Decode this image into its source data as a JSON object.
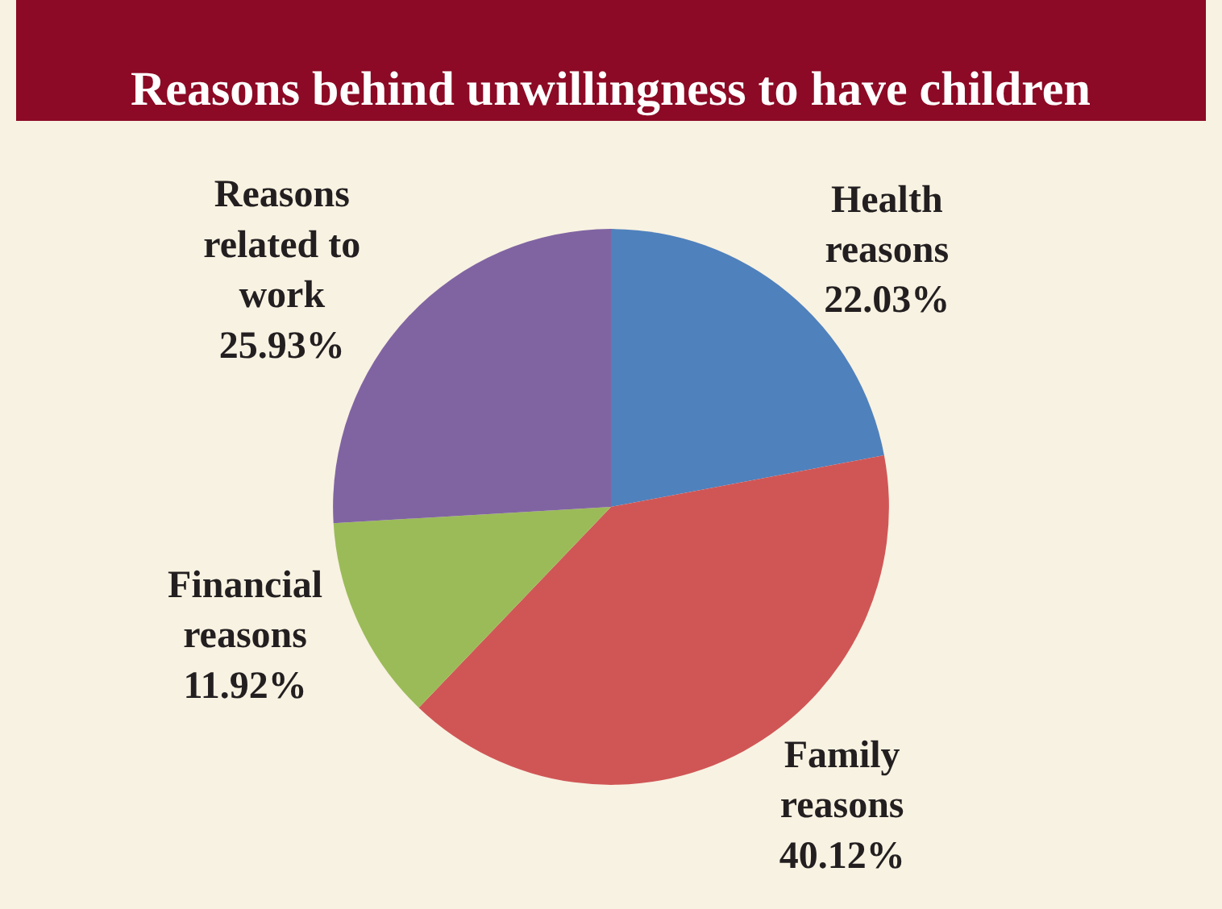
{
  "chart_data": {
    "type": "pie",
    "title": "Reasons behind unwillingness to have children",
    "categories": [
      "Health reasons",
      "Family reasons",
      "Financial reasons",
      "Reasons related to work"
    ],
    "values": [
      22.03,
      40.12,
      11.92,
      25.93
    ],
    "colors": [
      "#4f81bd",
      "#d05656",
      "#9bbb59",
      "#8064a2"
    ],
    "value_labels": [
      "22.03%",
      "40.12%",
      "11.92%",
      "25.93%"
    ],
    "legend": false
  }
}
